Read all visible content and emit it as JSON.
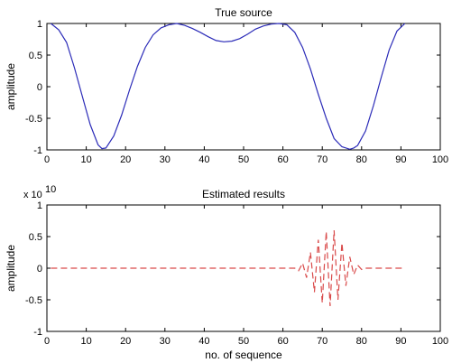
{
  "chart_data": [
    {
      "type": "line",
      "title": "True source",
      "xlabel": "",
      "ylabel": "amplitude",
      "xlim": [
        0,
        100
      ],
      "ylim": [
        -1,
        1
      ],
      "xticks": [
        0,
        10,
        20,
        30,
        40,
        50,
        60,
        70,
        80,
        90,
        100
      ],
      "yticks": [
        -1,
        -0.5,
        0,
        0.5,
        1
      ],
      "series_color": "#2b2bb8",
      "line_style": "solid",
      "x": [
        1,
        3,
        5,
        7,
        9,
        11,
        13,
        14,
        15,
        17,
        19,
        21,
        23,
        25,
        27,
        29,
        31,
        33,
        35,
        37,
        39,
        41,
        43,
        45,
        47,
        49,
        51,
        53,
        55,
        57,
        59,
        61,
        63,
        65,
        67,
        69,
        71,
        73,
        75,
        77,
        78,
        79,
        81,
        83,
        85,
        87,
        89,
        91
      ],
      "y": [
        1.0,
        0.9,
        0.7,
        0.3,
        -0.15,
        -0.6,
        -0.92,
        -0.98,
        -0.97,
        -0.78,
        -0.45,
        -0.05,
        0.32,
        0.62,
        0.82,
        0.93,
        0.98,
        1.0,
        0.97,
        0.92,
        0.86,
        0.79,
        0.73,
        0.71,
        0.72,
        0.76,
        0.83,
        0.91,
        0.96,
        0.99,
        1.0,
        0.98,
        0.86,
        0.62,
        0.28,
        -0.12,
        -0.5,
        -0.82,
        -0.95,
        -0.99,
        -0.97,
        -0.93,
        -0.7,
        -0.3,
        0.15,
        0.58,
        0.88,
        1.0
      ]
    },
    {
      "type": "line",
      "title": "Estimated results",
      "xlabel": "no. of sequence",
      "ylabel": "amplitude",
      "xlim": [
        0,
        100
      ],
      "ylim": [
        -1,
        1
      ],
      "y_exponent": "x 10",
      "y_exponent_power": "10",
      "xticks": [
        0,
        10,
        20,
        30,
        40,
        50,
        60,
        70,
        80,
        90,
        100
      ],
      "yticks": [
        -1,
        -0.5,
        0,
        0.5,
        1
      ],
      "series_color": "#d94a4a",
      "line_style": "dashed",
      "x": [
        1,
        10,
        20,
        30,
        40,
        50,
        60,
        63,
        64,
        65,
        66,
        67,
        68,
        69,
        70,
        71,
        72,
        73,
        74,
        75,
        76,
        77,
        78,
        79,
        80,
        81,
        85,
        91
      ],
      "y": [
        0,
        0,
        0,
        0,
        0,
        0,
        0,
        0,
        -0.04,
        0.08,
        -0.15,
        0.25,
        -0.38,
        0.45,
        -0.55,
        0.58,
        -0.6,
        0.6,
        -0.5,
        0.4,
        -0.28,
        0.18,
        -0.1,
        0.05,
        -0.02,
        0,
        0,
        0
      ]
    }
  ]
}
